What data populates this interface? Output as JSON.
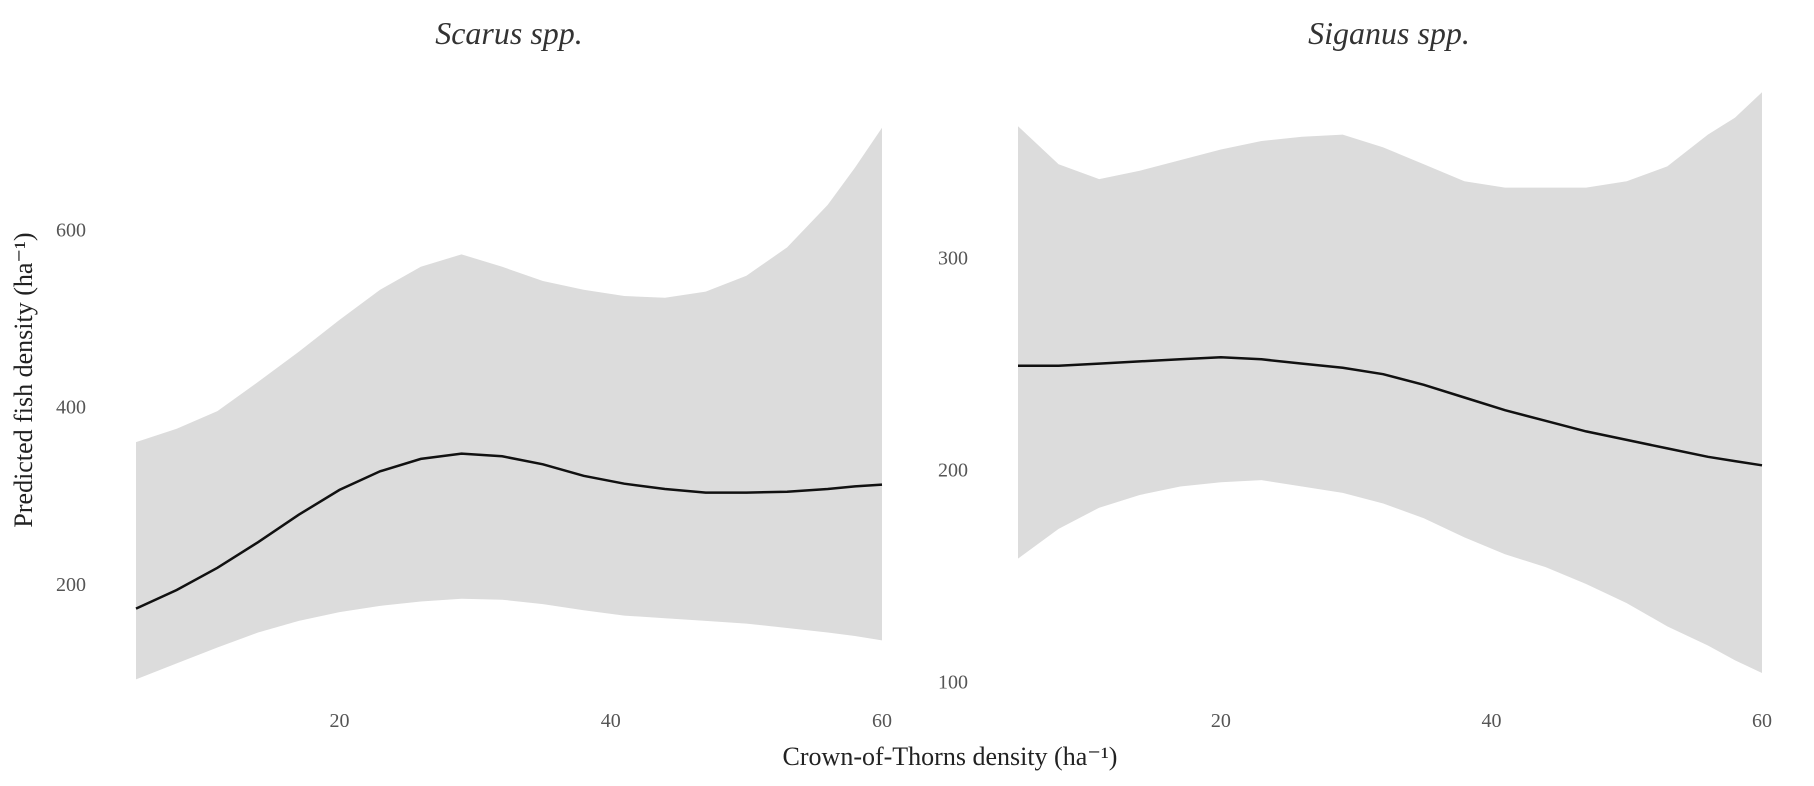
{
  "chart_data": [
    {
      "type": "line",
      "title": "Scarus spp.",
      "xlabel": "Crown-of-Thorns density (ha⁻¹)",
      "ylabel": "Predicted fish density (ha⁻¹)",
      "xlim": [
        5,
        60
      ],
      "ylim": [
        80,
        760
      ],
      "xticks": [
        20,
        40,
        60
      ],
      "yticks": [
        200,
        400,
        600
      ],
      "grid": false,
      "x": [
        5,
        8,
        11,
        14,
        17,
        20,
        23,
        26,
        29,
        32,
        35,
        38,
        41,
        44,
        47,
        50,
        53,
        56,
        58,
        60
      ],
      "series": [
        {
          "values": [
            172,
            193,
            218,
            247,
            278,
            306,
            327,
            341,
            347,
            344,
            335,
            322,
            313,
            307,
            303,
            303,
            304,
            307,
            310,
            312
          ],
          "lower": [
            92,
            110,
            128,
            145,
            158,
            168,
            175,
            180,
            183,
            182,
            177,
            170,
            164,
            161,
            158,
            155,
            150,
            145,
            141,
            136
          ],
          "upper": [
            360,
            375,
            395,
            428,
            462,
            498,
            532,
            558,
            572,
            558,
            542,
            532,
            525,
            523,
            530,
            548,
            580,
            628,
            670,
            715
          ]
        }
      ]
    },
    {
      "type": "line",
      "title": "Siganus spp.",
      "xlabel": "Crown-of-Thorns density (ha⁻¹)",
      "ylabel": "",
      "xlim": [
        5,
        60
      ],
      "ylim": [
        96,
        380
      ],
      "xticks": [
        20,
        40,
        60
      ],
      "yticks": [
        100,
        200,
        300
      ],
      "grid": false,
      "x": [
        5,
        8,
        11,
        14,
        17,
        20,
        23,
        26,
        29,
        32,
        35,
        38,
        41,
        44,
        47,
        50,
        53,
        56,
        58,
        60
      ],
      "series": [
        {
          "values": [
            249,
            249,
            250,
            251,
            252,
            253,
            252,
            250,
            248,
            245,
            240,
            234,
            228,
            223,
            218,
            214,
            210,
            206,
            204,
            202
          ],
          "lower": [
            158,
            172,
            182,
            188,
            192,
            194,
            195,
            192,
            189,
            184,
            177,
            168,
            160,
            154,
            146,
            137,
            126,
            117,
            110,
            104
          ],
          "upper": [
            362,
            344,
            337,
            341,
            346,
            351,
            355,
            357,
            358,
            352,
            344,
            336,
            333,
            333,
            333,
            336,
            343,
            358,
            366,
            378
          ]
        }
      ]
    }
  ]
}
